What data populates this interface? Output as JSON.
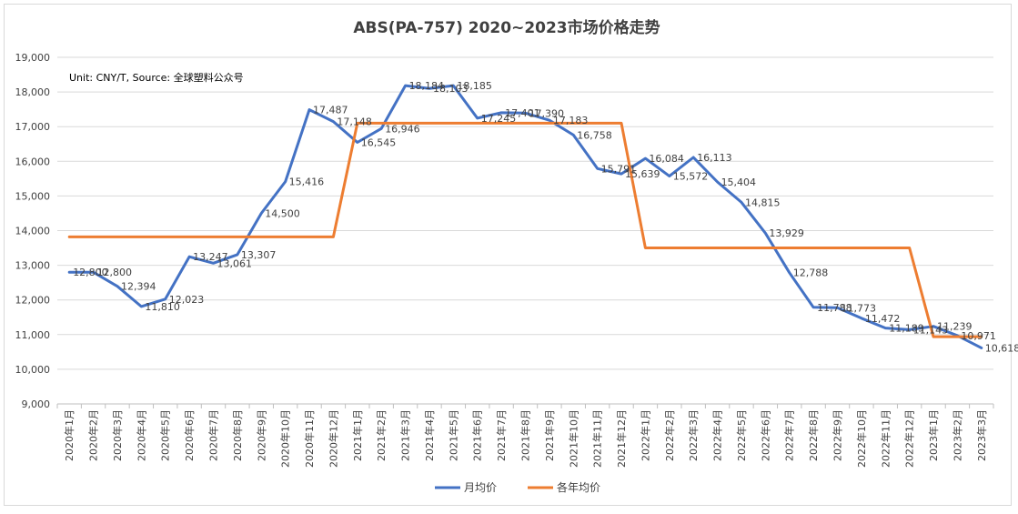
{
  "chart_data": {
    "type": "line",
    "title": "ABS(PA-757) 2020~2023市场价格走势",
    "note": "Unit: CNY/T, Source:  全球塑料公众号",
    "ylim": [
      9000,
      19000
    ],
    "yticks": [
      "9,000",
      "10,000",
      "11,000",
      "12,000",
      "13,000",
      "14,000",
      "15,000",
      "16,000",
      "17,000",
      "18,000",
      "19,000"
    ],
    "ytick_values": [
      9000,
      10000,
      11000,
      12000,
      13000,
      14000,
      15000,
      16000,
      17000,
      18000,
      19000
    ],
    "categories": [
      "2020年1月",
      "2020年2月",
      "2020年3月",
      "2020年4月",
      "2020年5月",
      "2020年6月",
      "2020年7月",
      "2020年8月",
      "2020年9月",
      "2020年10月",
      "2020年11月",
      "2020年12月",
      "2021年1月",
      "2021年2月",
      "2021年3月",
      "2021年4月",
      "2021年5月",
      "2021年6月",
      "2021年7月",
      "2021年8月",
      "2021年9月",
      "2021年10月",
      "2021年11月",
      "2021年12月",
      "2022年1月",
      "2022年2月",
      "2022年3月",
      "2022年4月",
      "2022年5月",
      "2022年6月",
      "2022年7月",
      "2022年8月",
      "2022年9月",
      "2022年10月",
      "2022年11月",
      "2022年12月",
      "2023年1月",
      "2023年2月",
      "2023年3月"
    ],
    "grid": true,
    "legend_position": "bottom",
    "series": [
      {
        "name": "月均价",
        "color": "#4472c4",
        "values": [
          12800,
          12800,
          12394,
          11810,
          12023,
          13247,
          13061,
          13307,
          14500,
          15416,
          17487,
          17148,
          16545,
          16946,
          18184,
          18103,
          18185,
          17245,
          17401,
          17390,
          17183,
          16758,
          15791,
          15639,
          16084,
          15572,
          16113,
          15404,
          14815,
          13929,
          12788,
          11788,
          11773,
          11472,
          11189,
          11143,
          11239,
          10971,
          10618
        ],
        "labels": [
          "12,800",
          "12,800",
          "12,394",
          "11,810",
          "12,023",
          "13,247",
          "13,061",
          "13,307",
          "14,500",
          "15,416",
          "17,487",
          "17,148",
          "16,545",
          "16,946",
          "18,184",
          "18,103",
          "18,185",
          "17,245",
          "17,401",
          "17,390",
          "17,183",
          "16,758",
          "15,791",
          "15,639",
          "16,084",
          "15,572",
          "16,113",
          "15,404",
          "14,815",
          "13,929",
          "12,788",
          "11,788",
          "11,773",
          "11,472",
          "11,189",
          "11,143",
          "11,239",
          "10,971",
          "10,618"
        ]
      },
      {
        "name": "各年均价",
        "color": "#ed7d31",
        "values": [
          13820,
          13820,
          13820,
          13820,
          13820,
          13820,
          13820,
          13820,
          13820,
          13820,
          13820,
          13820,
          17100,
          17100,
          17100,
          17100,
          17100,
          17100,
          17100,
          17100,
          17100,
          17100,
          17100,
          17100,
          13500,
          13500,
          13500,
          13500,
          13500,
          13500,
          13500,
          13500,
          13500,
          13500,
          13500,
          13500,
          10940,
          10940,
          10940
        ]
      }
    ]
  }
}
